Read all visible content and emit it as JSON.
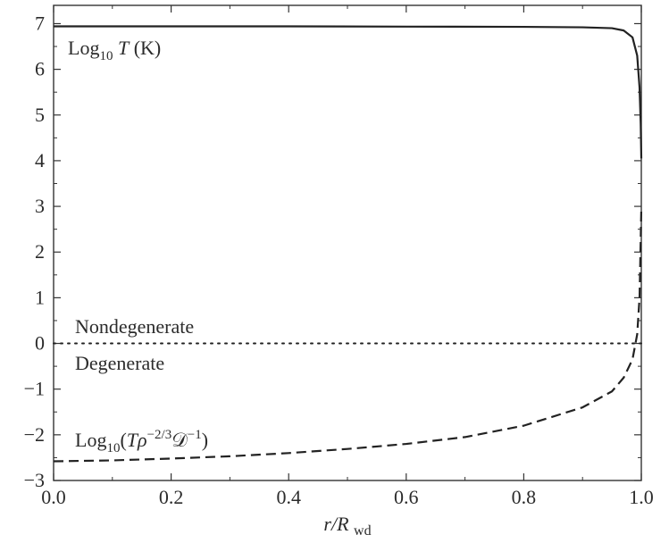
{
  "chart_data": {
    "type": "line",
    "title": "",
    "xlabel": {
      "main": "r/R",
      "sub": "wd"
    },
    "ylabel": "",
    "xlim": [
      0.0,
      1.0
    ],
    "ylim": [
      -3,
      7.4
    ],
    "x_ticks": [
      0.0,
      0.2,
      0.4,
      0.6,
      0.8,
      1.0
    ],
    "x_tick_labels": [
      "0.0",
      "0.2",
      "0.4",
      "0.6",
      "0.8",
      "1.0"
    ],
    "y_ticks": [
      -3,
      -2,
      -1,
      0,
      1,
      2,
      3,
      4,
      5,
      6,
      7
    ],
    "y_tick_labels": [
      "−3",
      "−2",
      "−1",
      "0",
      "1",
      "2",
      "3",
      "4",
      "5",
      "6",
      "7"
    ],
    "grid": false,
    "legend": "none",
    "series": [
      {
        "style": "solid",
        "color": "#222222",
        "x": [
          0.0,
          0.2,
          0.4,
          0.6,
          0.8,
          0.9,
          0.95,
          0.97,
          0.985,
          0.993,
          0.997,
          0.999,
          1.0
        ],
        "y": [
          6.94,
          6.94,
          6.94,
          6.935,
          6.93,
          6.92,
          6.9,
          6.85,
          6.7,
          6.3,
          5.6,
          4.8,
          4.05
        ]
      },
      {
        "style": "dashed",
        "color": "#222222",
        "x": [
          0.0,
          0.1,
          0.2,
          0.3,
          0.4,
          0.5,
          0.6,
          0.7,
          0.8,
          0.9,
          0.95,
          0.97,
          0.985,
          0.993,
          0.997,
          1.0
        ],
        "y": [
          -2.58,
          -2.56,
          -2.52,
          -2.47,
          -2.4,
          -2.31,
          -2.2,
          -2.05,
          -1.8,
          -1.4,
          -1.05,
          -0.75,
          -0.35,
          0.2,
          1.0,
          2.95
        ]
      },
      {
        "style": "dotted",
        "color": "#222222",
        "x": [
          0.0,
          1.0
        ],
        "y": [
          0,
          0
        ]
      }
    ],
    "annotations": [
      {
        "id": "logT",
        "parts": [
          {
            "text": "Log",
            "kind": "normal"
          },
          {
            "text": "10",
            "kind": "sub"
          },
          {
            "text": " T",
            "kind": "italic"
          },
          {
            "text": " (K)",
            "kind": "normal"
          }
        ]
      },
      {
        "id": "nondegenerate",
        "parts": [
          {
            "text": "Nondegenerate",
            "kind": "normal"
          }
        ]
      },
      {
        "id": "degenerate",
        "parts": [
          {
            "text": "Degenerate",
            "kind": "normal"
          }
        ]
      },
      {
        "id": "logTrho",
        "parts": [
          {
            "text": "Log",
            "kind": "normal"
          },
          {
            "text": "10",
            "kind": "sub"
          },
          {
            "text": "(",
            "kind": "normal"
          },
          {
            "text": "Tρ",
            "kind": "italic"
          },
          {
            "text": "−2/3",
            "kind": "sup"
          },
          {
            "text": "𝒟",
            "kind": "normal"
          },
          {
            "text": "−1",
            "kind": "sup"
          },
          {
            "text": ")",
            "kind": "normal"
          }
        ]
      }
    ]
  }
}
